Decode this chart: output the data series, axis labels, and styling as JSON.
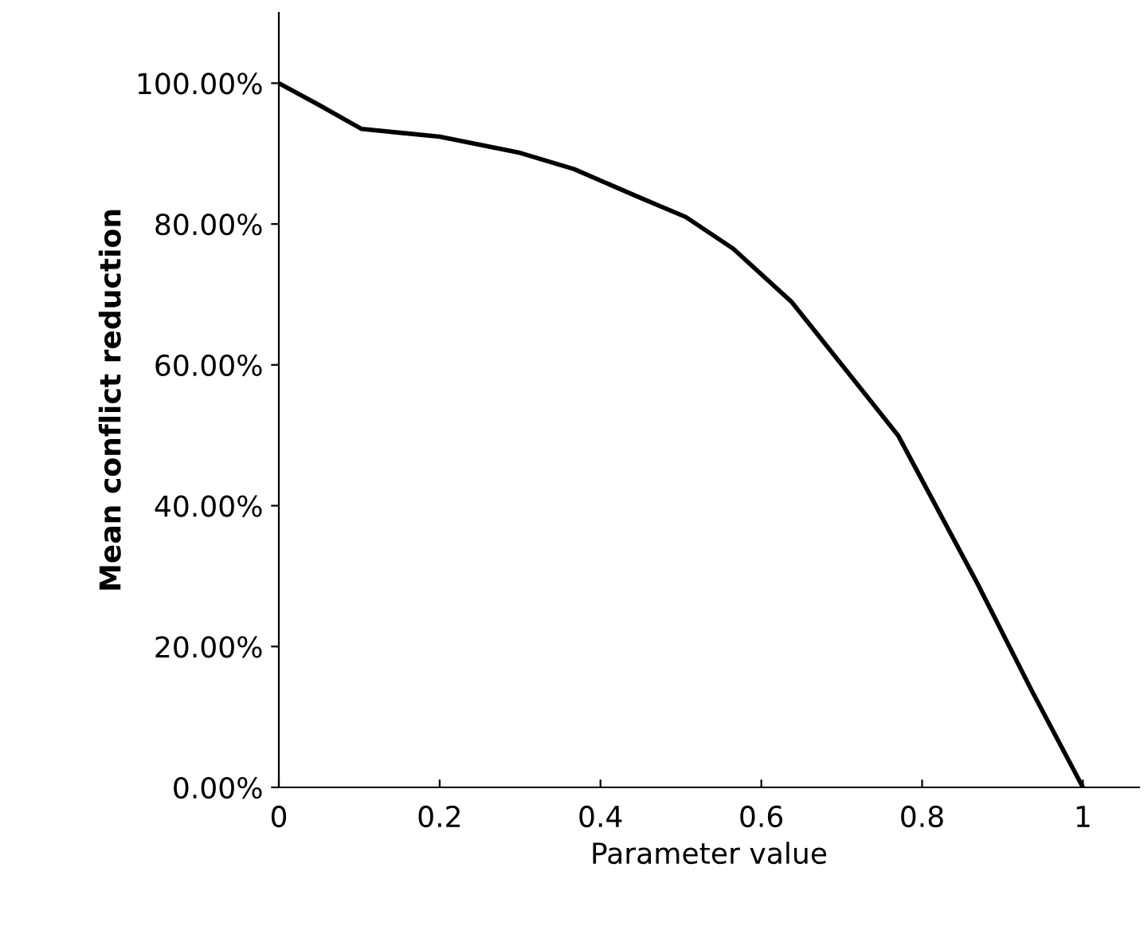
{
  "chart_data": {
    "type": "line",
    "xlabel": "Parameter value",
    "ylabel": "Mean conflict reduction",
    "x": [
      0,
      0.05,
      0.103,
      0.2,
      0.3,
      0.367,
      0.45,
      0.506,
      0.565,
      0.638,
      0.77,
      0.869,
      0.936,
      1
    ],
    "series": [
      {
        "color": "#000000",
        "values": [
          100,
          96.9,
          93.5,
          92.4,
          90.1,
          87.8,
          83.7,
          81,
          76.5,
          68.9,
          50,
          28.9,
          13.8,
          0
        ]
      }
    ],
    "xlim": [
      0,
      1.07
    ],
    "ylim": [
      0,
      110
    ],
    "xticks": [
      0,
      0.2,
      0.4,
      0.6,
      0.8,
      1
    ],
    "yticks": [
      {
        "value": 0,
        "label": "0.00%"
      },
      {
        "value": 20,
        "label": "20.00%"
      },
      {
        "value": 40,
        "label": "40.00%"
      },
      {
        "value": 60,
        "label": "60.00%"
      },
      {
        "value": 80,
        "label": "80.00%"
      },
      {
        "value": 100,
        "label": "100.00%"
      }
    ],
    "grid": false,
    "marker": "none",
    "line_style": "solid"
  }
}
